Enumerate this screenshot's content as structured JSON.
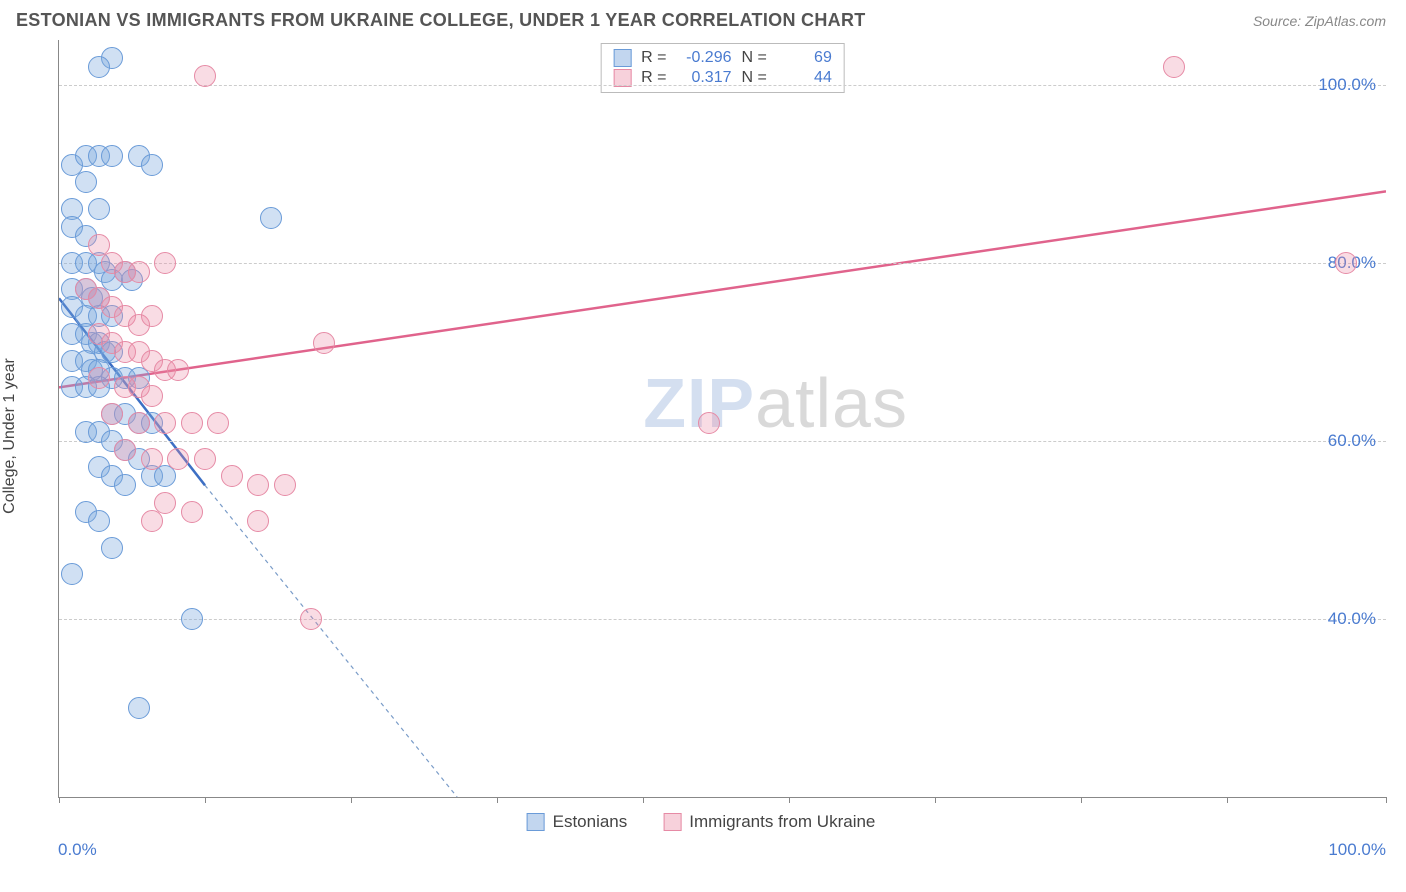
{
  "title": "ESTONIAN VS IMMIGRANTS FROM UKRAINE COLLEGE, UNDER 1 YEAR CORRELATION CHART",
  "source": "Source: ZipAtlas.com",
  "ylabel": "College, Under 1 year",
  "watermark": {
    "zip": "ZIP",
    "atlas": "atlas"
  },
  "chart": {
    "type": "scatter",
    "xlim": [
      0,
      100
    ],
    "ylim": [
      20,
      105
    ],
    "y_ticks": [
      40,
      60,
      80,
      100
    ],
    "y_tick_labels": [
      "40.0%",
      "60.0%",
      "80.0%",
      "100.0%"
    ],
    "x_ticks": [
      0,
      11,
      22,
      33,
      44,
      55,
      66,
      77,
      88,
      100
    ],
    "x_start_label": "0.0%",
    "x_end_label": "100.0%",
    "background_color": "#ffffff",
    "grid_color": "#cccccc",
    "marker_radius": 11,
    "colors": {
      "blue_fill": "rgba(120,165,220,0.35)",
      "blue_stroke": "#6a9bd8",
      "pink_fill": "rgba(235,140,165,0.30)",
      "pink_stroke": "#e68aa5",
      "axis": "#888888",
      "tick_text": "#4a7bd0",
      "line_blue": "#3d6fc4",
      "line_pink": "#e0638c",
      "dash_blue": "#7a9cc8"
    },
    "series": [
      {
        "name": "Estonians",
        "color_key": "blue",
        "r": -0.296,
        "n": 69,
        "regression": {
          "x1": 0,
          "y1": 76,
          "x2": 11,
          "y2": 55,
          "dashed_extend_to_x": 30,
          "dashed_extend_to_y": 20
        },
        "points": [
          [
            4,
            103
          ],
          [
            3,
            102
          ],
          [
            1,
            91
          ],
          [
            2,
            92
          ],
          [
            3,
            92
          ],
          [
            4,
            92
          ],
          [
            6,
            92
          ],
          [
            7,
            91
          ],
          [
            2,
            89
          ],
          [
            1,
            86
          ],
          [
            3,
            86
          ],
          [
            1,
            84
          ],
          [
            2,
            83
          ],
          [
            1,
            80
          ],
          [
            2,
            80
          ],
          [
            3,
            80
          ],
          [
            3.5,
            79
          ],
          [
            4,
            78
          ],
          [
            1,
            77
          ],
          [
            2,
            77
          ],
          [
            2.5,
            76
          ],
          [
            3,
            76
          ],
          [
            1,
            75
          ],
          [
            2,
            74
          ],
          [
            3,
            74
          ],
          [
            4,
            74
          ],
          [
            5,
            79
          ],
          [
            5.5,
            78
          ],
          [
            1,
            72
          ],
          [
            2,
            72
          ],
          [
            2.5,
            71
          ],
          [
            3,
            71
          ],
          [
            3.5,
            70
          ],
          [
            4,
            70
          ],
          [
            1,
            69
          ],
          [
            2,
            69
          ],
          [
            2.5,
            68
          ],
          [
            3,
            68
          ],
          [
            4,
            67
          ],
          [
            5,
            67
          ],
          [
            6,
            67
          ],
          [
            1,
            66
          ],
          [
            2,
            66
          ],
          [
            3,
            66
          ],
          [
            4,
            63
          ],
          [
            5,
            63
          ],
          [
            6,
            62
          ],
          [
            7,
            62
          ],
          [
            2,
            61
          ],
          [
            3,
            61
          ],
          [
            4,
            60
          ],
          [
            5,
            59
          ],
          [
            6,
            58
          ],
          [
            3,
            57
          ],
          [
            4,
            56
          ],
          [
            5,
            55
          ],
          [
            7,
            56
          ],
          [
            8,
            56
          ],
          [
            2,
            52
          ],
          [
            3,
            51
          ],
          [
            4,
            48
          ],
          [
            1,
            45
          ],
          [
            10,
            40
          ],
          [
            6,
            30
          ],
          [
            16,
            85
          ]
        ]
      },
      {
        "name": "Immigrants from Ukraine",
        "color_key": "pink",
        "r": 0.317,
        "n": 44,
        "regression": {
          "x1": 0,
          "y1": 66,
          "x2": 100,
          "y2": 88
        },
        "points": [
          [
            11,
            101
          ],
          [
            84,
            102
          ],
          [
            3,
            82
          ],
          [
            4,
            80
          ],
          [
            5,
            79
          ],
          [
            6,
            79
          ],
          [
            8,
            80
          ],
          [
            2,
            77
          ],
          [
            3,
            76
          ],
          [
            4,
            75
          ],
          [
            5,
            74
          ],
          [
            6,
            73
          ],
          [
            7,
            74
          ],
          [
            3,
            72
          ],
          [
            4,
            71
          ],
          [
            5,
            70
          ],
          [
            6,
            70
          ],
          [
            7,
            69
          ],
          [
            8,
            68
          ],
          [
            9,
            68
          ],
          [
            3,
            67
          ],
          [
            5,
            66
          ],
          [
            6,
            66
          ],
          [
            7,
            65
          ],
          [
            4,
            63
          ],
          [
            6,
            62
          ],
          [
            8,
            62
          ],
          [
            10,
            62
          ],
          [
            12,
            62
          ],
          [
            5,
            59
          ],
          [
            7,
            58
          ],
          [
            9,
            58
          ],
          [
            11,
            58
          ],
          [
            13,
            56
          ],
          [
            15,
            55
          ],
          [
            17,
            55
          ],
          [
            15,
            51
          ],
          [
            8,
            53
          ],
          [
            10,
            52
          ],
          [
            20,
            71
          ],
          [
            49,
            62
          ],
          [
            19,
            40
          ],
          [
            97,
            80
          ],
          [
            7,
            51
          ]
        ]
      }
    ]
  },
  "legend_top": {
    "rows": [
      {
        "swatch": "blue",
        "r_label": "R =",
        "r_val": "-0.296",
        "n_label": "N =",
        "n_val": "69"
      },
      {
        "swatch": "pink",
        "r_label": "R =",
        "r_val": "0.317",
        "n_label": "N =",
        "n_val": "44"
      }
    ]
  },
  "legend_bottom": {
    "items": [
      {
        "swatch": "blue",
        "label": "Estonians"
      },
      {
        "swatch": "pink",
        "label": "Immigrants from Ukraine"
      }
    ]
  }
}
